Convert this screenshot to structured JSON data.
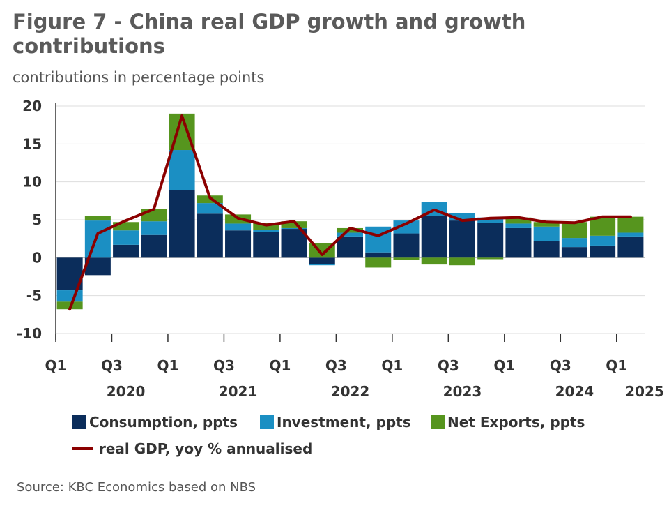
{
  "colors": {
    "consumption": "#0b2d5b",
    "investment": "#1b8fc3",
    "net_exports": "#56951e",
    "gdp_line": "#8b0000",
    "grid": "#dddddd",
    "axis": "#333333"
  },
  "chart_data": {
    "type": "bar",
    "title": "Figure 7 - China real GDP growth and growth contributions",
    "subtitle": "contributions in percentage points",
    "source": "Source: KBC Economics based on NBS",
    "stacked": true,
    "ylim": [
      -10,
      20
    ],
    "yticks": [
      -10,
      -5,
      0,
      5,
      10,
      15,
      20
    ],
    "grid": "horizontal",
    "legend_position": "bottom",
    "categories": [
      "2020Q1",
      "2020Q2",
      "2020Q3",
      "2020Q4",
      "2021Q1",
      "2021Q2",
      "2021Q3",
      "2021Q4",
      "2022Q1",
      "2022Q2",
      "2022Q3",
      "2022Q4",
      "2023Q1",
      "2023Q2",
      "2023Q3",
      "2023Q4",
      "2024Q1",
      "2024Q2",
      "2024Q3",
      "2024Q4",
      "2025Q1"
    ],
    "quarter_labels": [
      {
        "index": 0,
        "label": "Q1"
      },
      {
        "index": 2,
        "label": "Q3"
      },
      {
        "index": 4,
        "label": "Q1"
      },
      {
        "index": 6,
        "label": "Q3"
      },
      {
        "index": 8,
        "label": "Q1"
      },
      {
        "index": 10,
        "label": "Q3"
      },
      {
        "index": 12,
        "label": "Q1"
      },
      {
        "index": 14,
        "label": "Q3"
      },
      {
        "index": 16,
        "label": "Q1"
      },
      {
        "index": 18,
        "label": "Q3"
      },
      {
        "index": 20,
        "label": "Q1"
      }
    ],
    "year_labels": [
      {
        "index": 2,
        "label": "2020"
      },
      {
        "index": 6,
        "label": "2021"
      },
      {
        "index": 10,
        "label": "2022"
      },
      {
        "index": 14,
        "label": "2023"
      },
      {
        "index": 18,
        "label": "2024"
      },
      {
        "index": 20.5,
        "label": "2025"
      }
    ],
    "series": [
      {
        "name": "Consumption, ppts",
        "key": "consumption",
        "kind": "bar",
        "values": [
          -4.3,
          -2.3,
          1.7,
          3.0,
          8.9,
          5.8,
          3.6,
          3.4,
          3.8,
          -0.8,
          2.8,
          0.7,
          3.2,
          5.5,
          4.9,
          4.6,
          3.9,
          2.2,
          1.4,
          1.6,
          2.8
        ]
      },
      {
        "name": "Investment, ppts",
        "key": "investment",
        "kind": "bar",
        "values": [
          -1.5,
          4.9,
          1.9,
          1.8,
          5.3,
          1.4,
          0.9,
          0.3,
          0.1,
          -0.2,
          0.5,
          3.4,
          1.7,
          1.8,
          1.0,
          0.7,
          0.6,
          1.9,
          1.2,
          1.3,
          0.5
        ]
      },
      {
        "name": "Net Exports, ppts",
        "key": "net_exports",
        "kind": "bar",
        "values": [
          -1.0,
          0.6,
          1.1,
          1.6,
          4.8,
          1.0,
          1.2,
          0.9,
          0.9,
          1.9,
          0.6,
          -1.3,
          -0.3,
          -0.9,
          -1.0,
          -0.2,
          0.8,
          0.6,
          2.1,
          2.5,
          2.1
        ]
      },
      {
        "name": "real GDP, yoy % annualised",
        "key": "gdp_line",
        "kind": "line",
        "values": [
          -6.8,
          3.2,
          4.9,
          6.4,
          18.7,
          7.9,
          5.2,
          4.3,
          4.8,
          0.4,
          3.9,
          2.9,
          4.5,
          6.3,
          4.9,
          5.2,
          5.3,
          4.7,
          4.6,
          5.4,
          5.4
        ]
      }
    ]
  }
}
